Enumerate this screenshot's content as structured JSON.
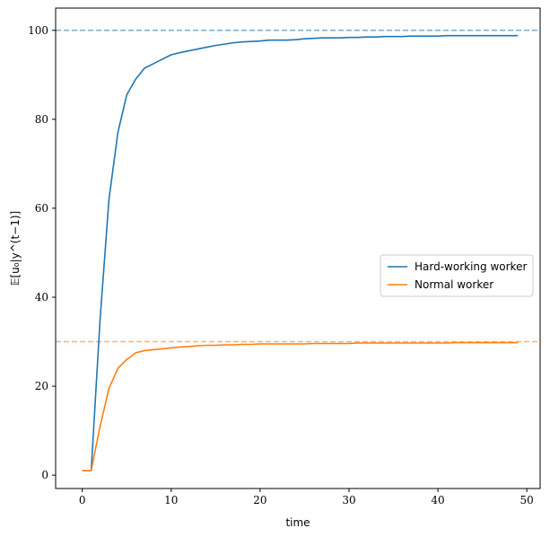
{
  "chart_data": {
    "type": "line",
    "xlabel": "time",
    "ylabel": "𝔼[u₀|y^(t−1)]",
    "xlim": [
      -3,
      51.5
    ],
    "ylim": [
      -3,
      105
    ],
    "xticks": [
      0,
      10,
      20,
      30,
      40,
      50
    ],
    "yticks": [
      0,
      20,
      40,
      60,
      80,
      100
    ],
    "grid": false,
    "legend_position": "center-right",
    "x": [
      0,
      1,
      2,
      3,
      4,
      5,
      6,
      7,
      8,
      9,
      10,
      11,
      12,
      13,
      14,
      15,
      16,
      17,
      18,
      19,
      20,
      21,
      22,
      23,
      24,
      25,
      26,
      27,
      28,
      29,
      30,
      31,
      32,
      33,
      34,
      35,
      36,
      37,
      38,
      39,
      40,
      41,
      42,
      43,
      44,
      45,
      46,
      47,
      48,
      49
    ],
    "series": [
      {
        "name": "Hard-working worker",
        "color": "#1f77b4",
        "values": [
          1,
          1,
          35,
          62,
          77,
          85.5,
          89,
          91.5,
          92.5,
          93.5,
          94.5,
          95,
          95.4,
          95.8,
          96.2,
          96.6,
          96.9,
          97.2,
          97.4,
          97.5,
          97.6,
          97.8,
          97.8,
          97.8,
          97.9,
          98.1,
          98.2,
          98.3,
          98.3,
          98.3,
          98.4,
          98.4,
          98.5,
          98.5,
          98.6,
          98.6,
          98.6,
          98.7,
          98.7,
          98.7,
          98.7,
          98.8,
          98.8,
          98.8,
          98.8,
          98.8,
          98.8,
          98.8,
          98.8,
          98.8
        ]
      },
      {
        "name": "Normal worker",
        "color": "#ff7f0e",
        "values": [
          1,
          1,
          11,
          19.5,
          24,
          26,
          27.5,
          28,
          28.2,
          28.4,
          28.6,
          28.8,
          28.9,
          29.1,
          29.2,
          29.2,
          29.3,
          29.3,
          29.4,
          29.4,
          29.5,
          29.5,
          29.5,
          29.5,
          29.5,
          29.5,
          29.6,
          29.6,
          29.6,
          29.6,
          29.6,
          29.7,
          29.7,
          29.7,
          29.7,
          29.7,
          29.7,
          29.7,
          29.7,
          29.7,
          29.7,
          29.7,
          29.8,
          29.8,
          29.8,
          29.8,
          29.8,
          29.8,
          29.8,
          29.8
        ]
      }
    ],
    "reference_lines": [
      {
        "y": 100,
        "color": "#1f77b4",
        "style": "dashed"
      },
      {
        "y": 30,
        "color": "#ff7f0e",
        "style": "dashed"
      }
    ]
  }
}
